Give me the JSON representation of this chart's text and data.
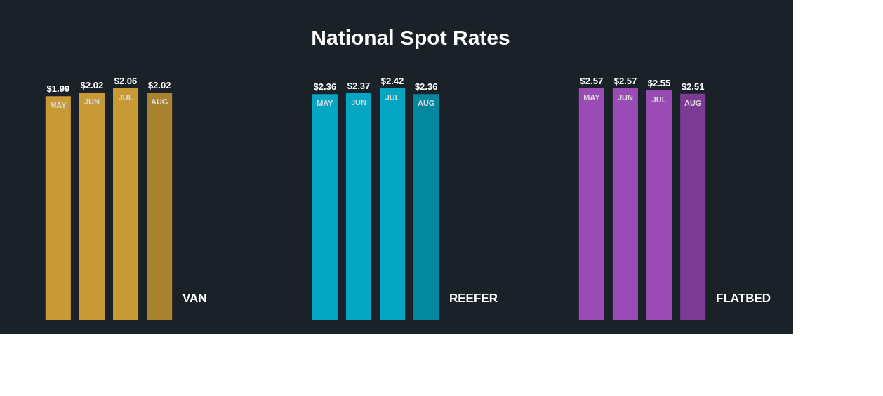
{
  "chart_data": [
    {
      "type": "bar",
      "xlabel": "VAN",
      "categories": [
        "MAY",
        "JUN",
        "JUL",
        "AUG"
      ],
      "values": [
        1.99,
        2.02,
        2.06,
        2.02
      ],
      "value_labels": [
        "$1.99",
        "$2.02",
        "$2.06",
        "$2.02"
      ],
      "colors": [
        "#c79a36",
        "#c79a36",
        "#c79a36",
        "#a8822c"
      ]
    },
    {
      "type": "bar",
      "title": "National Spot Rates",
      "xlabel": "REEFER",
      "categories": [
        "MAY",
        "JUN",
        "JUL",
        "AUG"
      ],
      "values": [
        2.36,
        2.37,
        2.42,
        2.36
      ],
      "value_labels": [
        "$2.36",
        "$2.37",
        "$2.42",
        "$2.36"
      ],
      "colors": [
        "#05a6c4",
        "#05a6c4",
        "#05a6c4",
        "#04879f"
      ]
    },
    {
      "type": "bar",
      "xlabel": "FLATBED",
      "categories": [
        "MAY",
        "JUN",
        "JUL",
        "AUG"
      ],
      "values": [
        2.57,
        2.57,
        2.55,
        2.51
      ],
      "value_labels": [
        "$2.57",
        "$2.57",
        "$2.55",
        "$2.51"
      ],
      "colors": [
        "#9a4bb6",
        "#9a4bb6",
        "#9a4bb6",
        "#7b3a93"
      ]
    }
  ]
}
